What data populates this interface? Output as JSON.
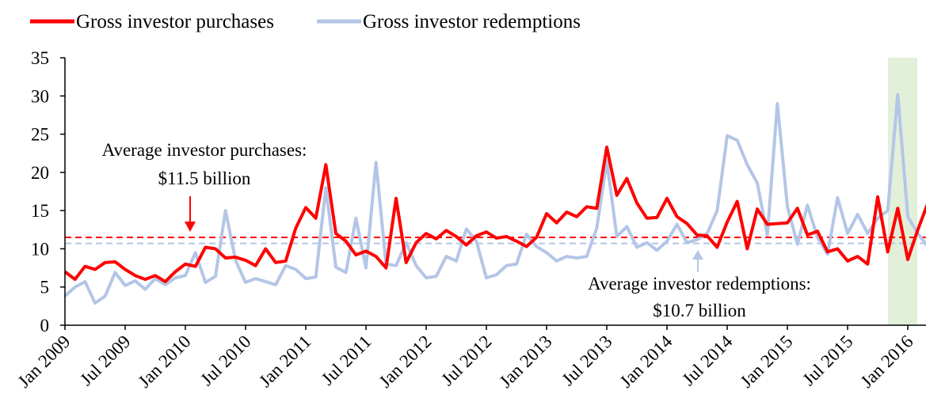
{
  "chart_data": {
    "type": "line",
    "categories": [
      "Jan 2009",
      null,
      null,
      null,
      null,
      null,
      "Jul 2009",
      null,
      null,
      null,
      null,
      null,
      "Jan 2010",
      null,
      null,
      null,
      null,
      null,
      "Jul 2010",
      null,
      null,
      null,
      null,
      null,
      "Jan 2011",
      null,
      null,
      null,
      null,
      null,
      "Jul 2011",
      null,
      null,
      null,
      null,
      null,
      "Jan 2012",
      null,
      null,
      null,
      null,
      null,
      "Jul 2012",
      null,
      null,
      null,
      null,
      null,
      "Jan 2013",
      null,
      null,
      null,
      null,
      null,
      "Jul 2013",
      null,
      null,
      null,
      null,
      null,
      "Jan 2014",
      null,
      null,
      null,
      null,
      null,
      "Jul 2014",
      null,
      null,
      null,
      null,
      null,
      "Jan 2015",
      null,
      null,
      null,
      null,
      null,
      "Jul 2015",
      null,
      null,
      null,
      null,
      null,
      "Jan 2016",
      null,
      null
    ],
    "series": [
      {
        "name": "Gross investor purchases",
        "color": "#ff0000",
        "values": [
          7,
          6,
          7.7,
          7.3,
          8.2,
          8.3,
          7.3,
          6.5,
          6,
          6.5,
          5.7,
          7,
          8,
          7.7,
          10.2,
          10,
          8.8,
          8.9,
          8.5,
          7.8,
          10,
          8.2,
          8.4,
          12.7,
          15.4,
          14,
          21,
          12,
          11,
          9.2,
          9.7,
          9,
          7.5,
          16.6,
          8.2,
          10.8,
          12,
          11.3,
          12.4,
          11.6,
          10.5,
          11.7,
          12.2,
          11.4,
          11.6,
          11,
          10.3,
          11.5,
          14.6,
          13.4,
          14.8,
          14.2,
          15.5,
          15.3,
          23.3,
          17,
          19.2,
          16,
          14,
          14.1,
          16.6,
          14.2,
          13.3,
          11.8,
          11.7,
          10.2,
          13.5,
          16.2,
          10,
          15.2,
          13.2,
          13.3,
          13.4,
          15.3,
          11.8,
          12.3,
          9.6,
          10,
          8.4,
          9,
          8,
          16.8,
          9.6,
          15.3,
          8.6,
          12.5,
          16
        ]
      },
      {
        "name": "Gross investor redemptions",
        "color": "#b4c6e7",
        "values": [
          3.8,
          5,
          5.7,
          2.9,
          3.8,
          6.9,
          5.2,
          5.8,
          4.7,
          6.1,
          5.3,
          6.2,
          6.5,
          9.5,
          5.6,
          6.4,
          15,
          8.5,
          5.6,
          6.1,
          5.7,
          5.3,
          7.8,
          7.3,
          6.1,
          6.3,
          18,
          7.6,
          6.9,
          14,
          7.5,
          21.3,
          8,
          7.8,
          10.8,
          7.8,
          6.2,
          6.4,
          9,
          8.4,
          12.6,
          11,
          6.2,
          6.6,
          7.8,
          8,
          11.9,
          10.3,
          9.5,
          8.4,
          9,
          8.8,
          9,
          12.7,
          21.5,
          11.6,
          12.9,
          10.2,
          10.8,
          9.8,
          11,
          13.2,
          10.8,
          11.2,
          12,
          15,
          24.8,
          24.2,
          21,
          18.6,
          11.8,
          29,
          15.5,
          10.6,
          15.7,
          11.5,
          9.3,
          16.7,
          12,
          14.5,
          12,
          14,
          15,
          30.2,
          14.2,
          12,
          10.3
        ]
      }
    ],
    "averages": [
      {
        "value": 11.5,
        "color": "#ff0000",
        "label": [
          "Average investor purchases:",
          "$11.5 billion"
        ]
      },
      {
        "value": 10.7,
        "color": "#b4c6e7",
        "label": [
          "Average investor redemptions:",
          "$10.7 billion"
        ]
      }
    ],
    "ylim": [
      0,
      35
    ],
    "yticks": [
      0,
      5,
      10,
      15,
      20,
      25,
      30,
      35
    ]
  }
}
